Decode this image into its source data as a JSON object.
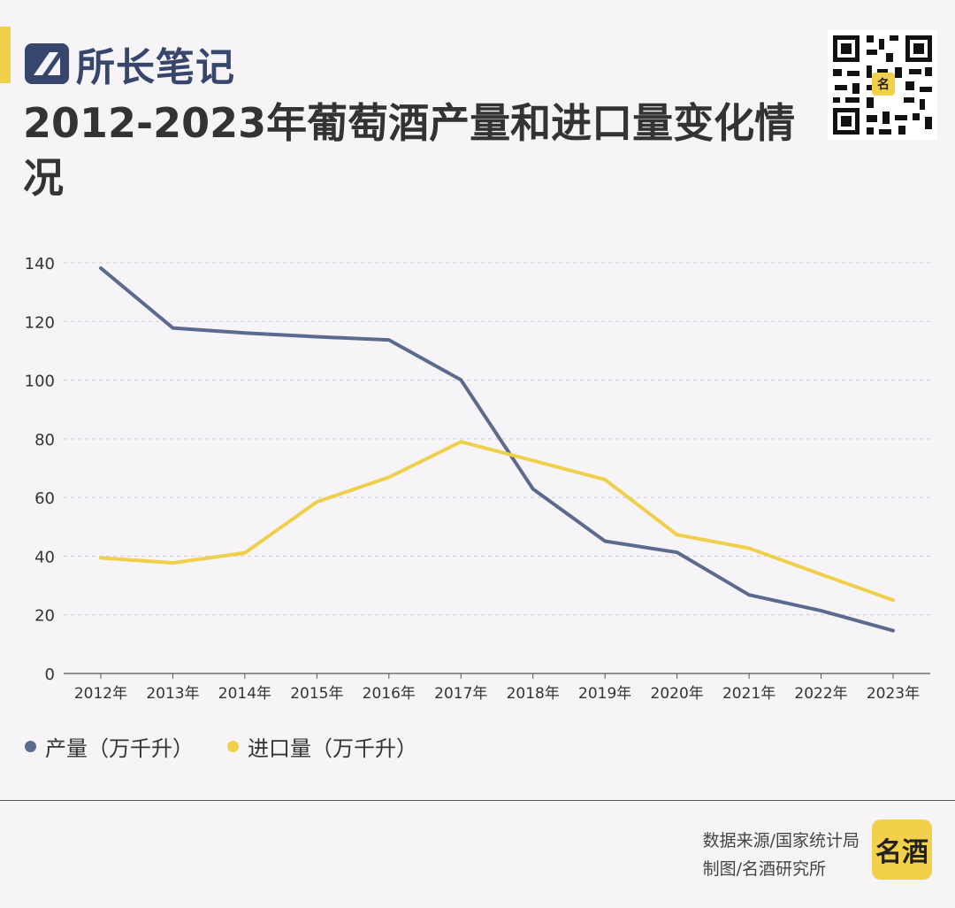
{
  "brand": {
    "name": "所长笔记",
    "color": "#36466d",
    "logo_icon": "brand-logo-icon"
  },
  "title": "2012-2023年葡萄酒产量和进口量变化情况",
  "qr_icon": "qr-code-icon",
  "source": {
    "line1": "数据来源/国家统计局",
    "line2": "制图/名酒研究所"
  },
  "badge": {
    "text": "名酒",
    "color": "#f2d04a"
  },
  "colors": {
    "accent": "#f2d04a",
    "production": "#5b6b8f",
    "import": "#f0cf4a",
    "background": "#f7f4f8"
  },
  "chart_data": {
    "type": "line",
    "title": "2012-2023年葡萄酒产量和进口量变化情况",
    "xlabel": "",
    "ylabel": "",
    "categories": [
      "2012年",
      "2013年",
      "2014年",
      "2015年",
      "2016年",
      "2017年",
      "2018年",
      "2019年",
      "2020年",
      "2021年",
      "2022年",
      "2023年"
    ],
    "ylim": [
      0,
      140
    ],
    "yticks": [
      0,
      20,
      40,
      60,
      80,
      100,
      120,
      140
    ],
    "grid": true,
    "legend_position": "bottom-left",
    "series": [
      {
        "name": "产量（万千升）",
        "color": "#5b6b8f",
        "values": [
          138.2,
          117.8,
          116.1,
          114.8,
          113.7,
          100.1,
          62.9,
          45.1,
          41.3,
          26.8,
          21.4,
          14.6
        ]
      },
      {
        "name": "进口量（万千升）",
        "color": "#f0cf4a",
        "values": [
          39.4,
          37.7,
          41.1,
          58.5,
          66.9,
          79.0,
          72.6,
          66.1,
          47.3,
          42.7,
          33.8,
          25.0
        ]
      }
    ]
  }
}
